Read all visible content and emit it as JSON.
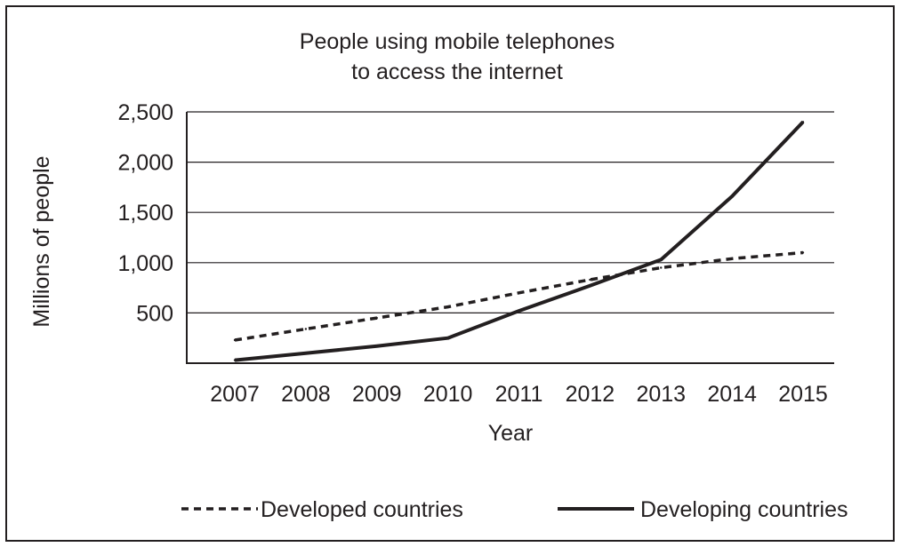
{
  "chart_data": {
    "type": "line",
    "title": [
      "People using mobile telephones",
      "to access the internet"
    ],
    "xlabel": "Year",
    "ylabel": "Millions of people",
    "categories": [
      "2007",
      "2008",
      "2009",
      "2010",
      "2011",
      "2012",
      "2013",
      "2014",
      "2015"
    ],
    "ylim": [
      0,
      2500
    ],
    "yticks": [
      {
        "value": 500,
        "label": "500"
      },
      {
        "value": 1000,
        "label": "1,000"
      },
      {
        "value": 1500,
        "label": "1,500"
      },
      {
        "value": 2000,
        "label": "2,000"
      },
      {
        "value": 2500,
        "label": "2,500"
      }
    ],
    "grid": true,
    "legend_position": "bottom",
    "series": [
      {
        "name": "Developed countries",
        "style": "dashed",
        "values": [
          230,
          340,
          450,
          560,
          700,
          830,
          950,
          1040,
          1100
        ]
      },
      {
        "name": "Developing countries",
        "style": "solid",
        "values": [
          30,
          100,
          170,
          250,
          520,
          770,
          1030,
          1660,
          2400
        ]
      }
    ],
    "color": "#231f20"
  }
}
